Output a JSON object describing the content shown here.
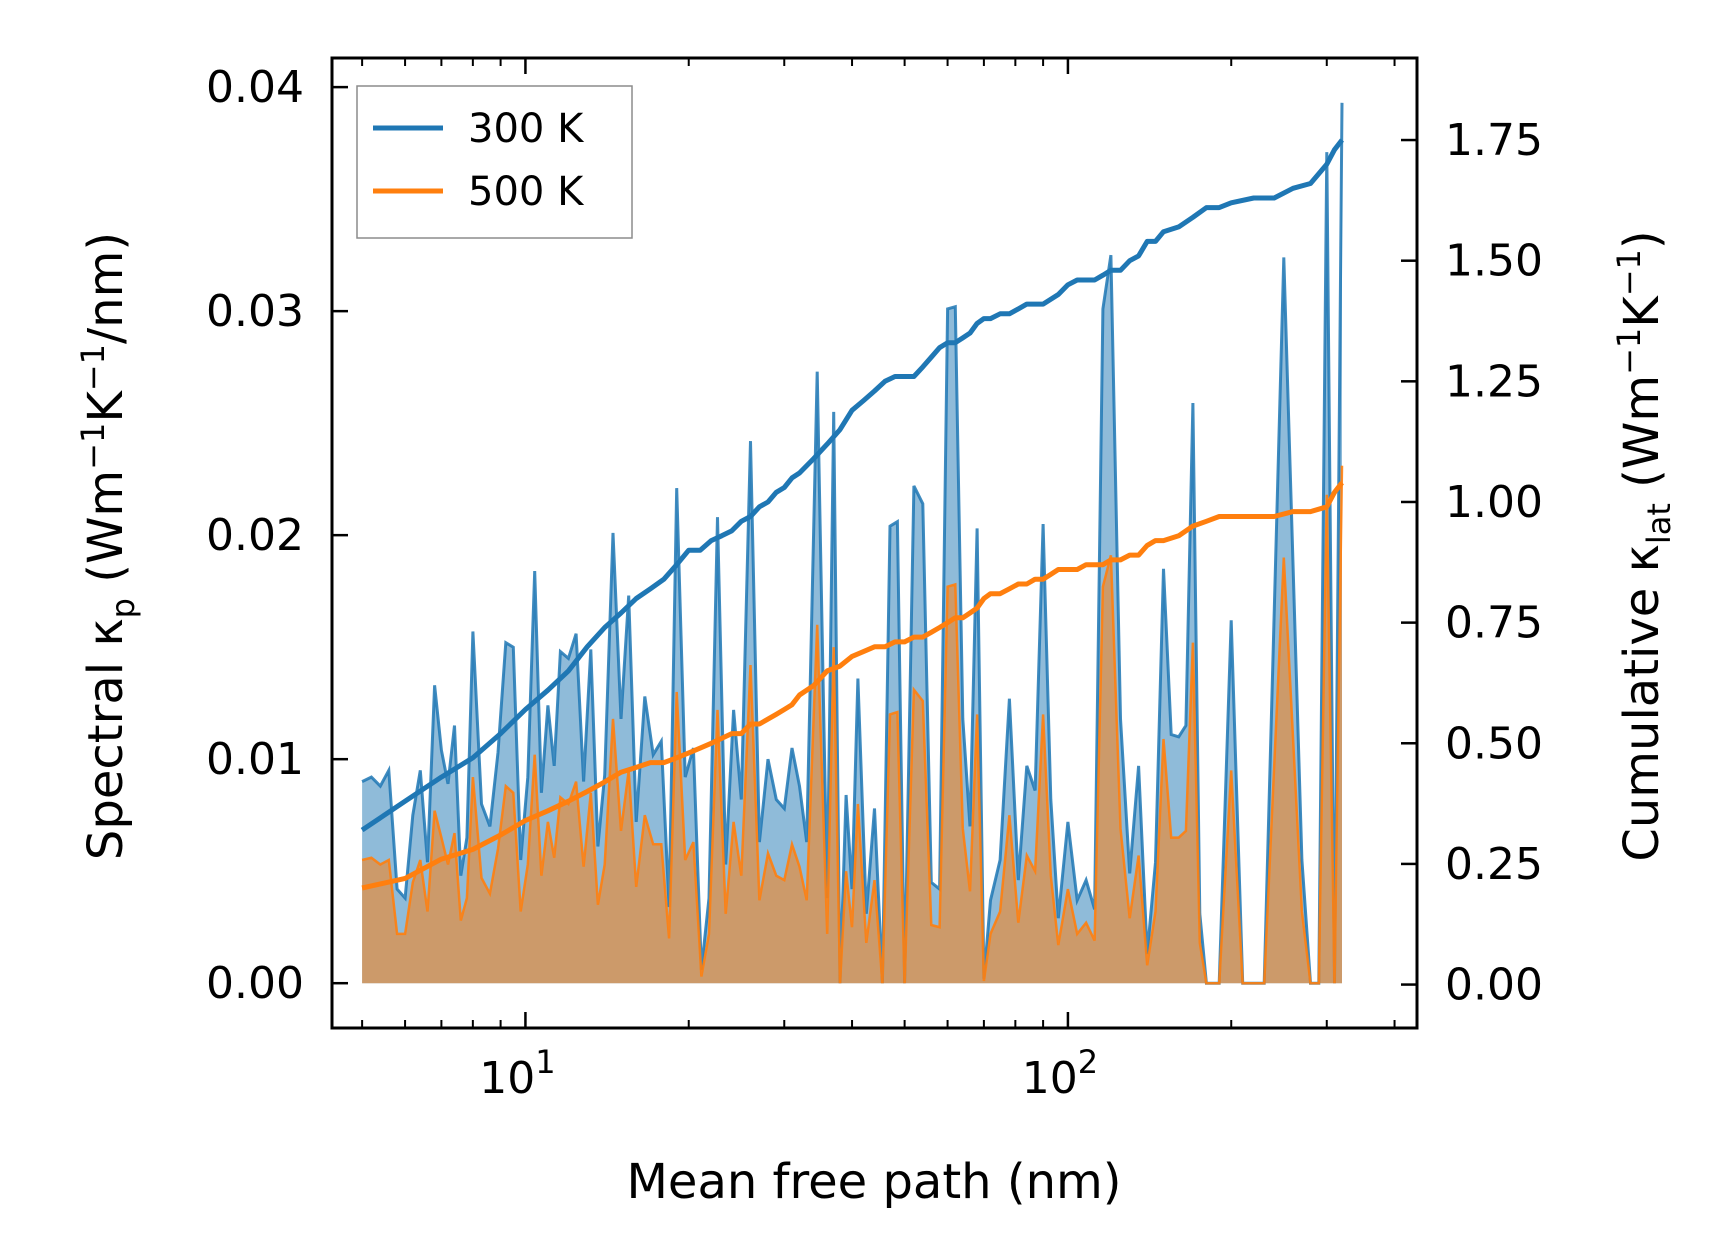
{
  "chart_data": {
    "type": "line",
    "xlabel": "Mean free path (nm)",
    "ylabel_left": {
      "prefix": "Spectral κ",
      "sub": "p",
      "mid1": " (Wm",
      "sup1": "−1",
      "mid2": "K",
      "sup2": "−1",
      "suffix": "/nm)"
    },
    "ylabel_right": {
      "prefix": "Cumulative κ",
      "sub": "lat",
      "mid1": " (Wm",
      "sup1": "−1",
      "mid2": "K",
      "sup2": "−1",
      "suffix": ")"
    },
    "x_scale": "log",
    "xlim": [
      4.4,
      440
    ],
    "ylim_left": [
      -0.002,
      0.0413
    ],
    "ylim_right": [
      -0.09,
      1.92
    ],
    "x_ticks": [
      {
        "value": 10,
        "base": "10",
        "exp": "1"
      },
      {
        "value": 100,
        "base": "10",
        "exp": "2"
      }
    ],
    "y_ticks_left": [
      {
        "value": 0.0,
        "label": "0.00"
      },
      {
        "value": 0.01,
        "label": "0.01"
      },
      {
        "value": 0.02,
        "label": "0.02"
      },
      {
        "value": 0.03,
        "label": "0.03"
      },
      {
        "value": 0.04,
        "label": "0.04"
      }
    ],
    "y_ticks_right": [
      {
        "value": 0.0,
        "label": "0.00"
      },
      {
        "value": 0.25,
        "label": "0.25"
      },
      {
        "value": 0.5,
        "label": "0.50"
      },
      {
        "value": 0.75,
        "label": "0.75"
      },
      {
        "value": 1.0,
        "label": "1.00"
      },
      {
        "value": 1.25,
        "label": "1.25"
      },
      {
        "value": 1.5,
        "label": "1.50"
      },
      {
        "value": 1.75,
        "label": "1.75"
      }
    ],
    "legend_position": "top-left",
    "series": [
      {
        "name": "300 K",
        "color": "#1f77b4",
        "spectral": {
          "x": [
            5,
            5.2,
            5.4,
            5.6,
            5.8,
            6.0,
            6.2,
            6.4,
            6.6,
            6.8,
            7.0,
            7.2,
            7.4,
            7.6,
            7.8,
            8.0,
            8.3,
            8.6,
            8.9,
            9.2,
            9.5,
            9.8,
            10.1,
            10.4,
            10.7,
            11.0,
            11.3,
            11.6,
            12.0,
            12.4,
            12.8,
            13.2,
            13.6,
            14.0,
            14.5,
            15.0,
            15.5,
            16.0,
            16.6,
            17.2,
            17.8,
            18.4,
            19.0,
            19.7,
            20.4,
            21.1,
            21.8,
            22.6,
            23.4,
            24.2,
            25.0,
            26.0,
            27.0,
            28.0,
            29.0,
            30.0,
            31.0,
            32.0,
            33.0,
            34.5,
            36.0,
            37.0,
            38.0,
            39.0,
            40.0,
            41.0,
            42.5,
            44.0,
            45.5,
            47.0,
            48.5,
            50.0,
            52.0,
            54.0,
            56.0,
            58.0,
            60.0,
            62.0,
            64.0,
            66.0,
            68.0,
            70.0,
            72.0,
            75.0,
            78.0,
            81.0,
            84.0,
            87.0,
            90.0,
            93.0,
            96.0,
            100.0,
            104.0,
            108.0,
            112.0,
            116.0,
            120.0,
            125.0,
            130.0,
            135.0,
            140.0,
            145.0,
            150.0,
            155.0,
            160.0,
            165.0,
            170.0,
            175.0,
            180.0,
            185.0,
            190.0,
            200.0,
            210.0,
            220.0,
            230.0,
            250.0,
            270.0,
            280.0,
            290.0,
            300.0,
            310.0,
            320.0
          ],
          "y": [
            0.009,
            0.0092,
            0.0088,
            0.0095,
            0.0042,
            0.0038,
            0.0075,
            0.0095,
            0.0054,
            0.0133,
            0.0104,
            0.0089,
            0.0115,
            0.0048,
            0.0065,
            0.0157,
            0.008,
            0.007,
            0.0103,
            0.0152,
            0.015,
            0.0055,
            0.0092,
            0.0184,
            0.0085,
            0.0124,
            0.0097,
            0.0148,
            0.0145,
            0.0156,
            0.009,
            0.0149,
            0.0061,
            0.0093,
            0.0201,
            0.0118,
            0.0173,
            0.0072,
            0.0128,
            0.0102,
            0.0108,
            0.0034,
            0.0221,
            0.0092,
            0.0105,
            0.0006,
            0.0038,
            0.0208,
            0.0053,
            0.0122,
            0.0082,
            0.0242,
            0.0063,
            0.01,
            0.0082,
            0.0078,
            0.0105,
            0.0088,
            0.0063,
            0.0273,
            0.0038,
            0.0255,
            0.0,
            0.0084,
            0.0042,
            0.0136,
            0.0031,
            0.0078,
            0.0,
            0.0204,
            0.0206,
            0.0,
            0.0222,
            0.0214,
            0.0045,
            0.0042,
            0.0301,
            0.0302,
            0.0118,
            0.007,
            0.0203,
            0.0002,
            0.0037,
            0.0055,
            0.0127,
            0.0046,
            0.0097,
            0.0086,
            0.0205,
            0.0082,
            0.0029,
            0.0072,
            0.0037,
            0.0046,
            0.0033,
            0.0301,
            0.0325,
            0.0118,
            0.0049,
            0.0097,
            0.0013,
            0.0054,
            0.0185,
            0.0111,
            0.011,
            0.0115,
            0.0259,
            0.0031,
            0.0,
            0.0,
            0.0,
            0.0162,
            0.0,
            0.0,
            0.0,
            0.0324,
            0.0055,
            0.0,
            0.0,
            0.0371,
            0.0,
            0.0393
          ],
          "y500": [
            0.0055,
            0.0056,
            0.0053,
            0.0055,
            0.0022,
            0.0022,
            0.0045,
            0.0055,
            0.0032,
            0.0077,
            0.0065,
            0.0053,
            0.0067,
            0.0028,
            0.0038,
            0.0092,
            0.0047,
            0.004,
            0.006,
            0.0088,
            0.0085,
            0.0032,
            0.0053,
            0.0102,
            0.0048,
            0.0072,
            0.0056,
            0.0083,
            0.008,
            0.009,
            0.0052,
            0.0085,
            0.0035,
            0.0053,
            0.0118,
            0.0068,
            0.0095,
            0.0043,
            0.0075,
            0.0062,
            0.0062,
            0.002,
            0.013,
            0.0055,
            0.0063,
            0.0003,
            0.0022,
            0.0122,
            0.0031,
            0.0072,
            0.0048,
            0.0142,
            0.0037,
            0.0058,
            0.0048,
            0.0046,
            0.0062,
            0.0052,
            0.0037,
            0.016,
            0.0022,
            0.015,
            0.0,
            0.005,
            0.0025,
            0.008,
            0.0018,
            0.0046,
            0.0,
            0.012,
            0.0121,
            0.0,
            0.0131,
            0.0126,
            0.0026,
            0.0025,
            0.0177,
            0.0178,
            0.0069,
            0.0041,
            0.012,
            0.0001,
            0.0022,
            0.0032,
            0.0075,
            0.0027,
            0.0057,
            0.005,
            0.012,
            0.0048,
            0.0017,
            0.0042,
            0.0022,
            0.0027,
            0.0019,
            0.0177,
            0.0191,
            0.0069,
            0.0029,
            0.0057,
            0.0008,
            0.0032,
            0.0109,
            0.0065,
            0.0065,
            0.0068,
            0.0152,
            0.0018,
            0.0,
            0.0,
            0.0,
            0.0095,
            0.0,
            0.0,
            0.0,
            0.019,
            0.0032,
            0.0,
            0.0,
            0.0218,
            0.0,
            0.0231
          ]
        },
        "cumulative": {
          "x": [
            5,
            6,
            7,
            8,
            9,
            10,
            11,
            12,
            13,
            14,
            15,
            16,
            17,
            18,
            19,
            20,
            21,
            22,
            23,
            24,
            25,
            26,
            27,
            28,
            29,
            30,
            31,
            32,
            34,
            36,
            38,
            40,
            42,
            44,
            46,
            48,
            50,
            52,
            54,
            56,
            58,
            60,
            62,
            64,
            66,
            68,
            70,
            72,
            75,
            78,
            81,
            84,
            87,
            90,
            93,
            96,
            100,
            104,
            108,
            112,
            116,
            120,
            125,
            130,
            135,
            140,
            145,
            150,
            160,
            170,
            180,
            190,
            200,
            220,
            240,
            260,
            280,
            300,
            310,
            320
          ],
          "y": [
            0.32,
            0.38,
            0.43,
            0.47,
            0.52,
            0.57,
            0.61,
            0.65,
            0.7,
            0.74,
            0.77,
            0.8,
            0.82,
            0.84,
            0.87,
            0.9,
            0.9,
            0.92,
            0.93,
            0.94,
            0.96,
            0.97,
            0.99,
            1.0,
            1.02,
            1.03,
            1.05,
            1.06,
            1.09,
            1.12,
            1.15,
            1.19,
            1.21,
            1.23,
            1.25,
            1.26,
            1.26,
            1.26,
            1.28,
            1.3,
            1.32,
            1.33,
            1.33,
            1.34,
            1.35,
            1.37,
            1.38,
            1.38,
            1.39,
            1.39,
            1.4,
            1.41,
            1.41,
            1.41,
            1.42,
            1.43,
            1.45,
            1.46,
            1.46,
            1.46,
            1.47,
            1.48,
            1.48,
            1.5,
            1.51,
            1.54,
            1.54,
            1.56,
            1.57,
            1.59,
            1.61,
            1.61,
            1.62,
            1.63,
            1.63,
            1.65,
            1.66,
            1.7,
            1.73,
            1.75
          ]
        }
      },
      {
        "name": "500 K",
        "color": "#ff7f0e",
        "cumulative": {
          "x": [
            5,
            6,
            7,
            8,
            9,
            10,
            11,
            12,
            13,
            14,
            15,
            16,
            17,
            18,
            19,
            20,
            21,
            22,
            23,
            24,
            25,
            26,
            27,
            28,
            29,
            30,
            31,
            32,
            34,
            36,
            38,
            40,
            42,
            44,
            46,
            48,
            50,
            52,
            54,
            56,
            58,
            60,
            62,
            64,
            66,
            68,
            70,
            72,
            75,
            78,
            81,
            84,
            87,
            90,
            93,
            96,
            100,
            104,
            108,
            112,
            116,
            120,
            125,
            130,
            135,
            140,
            145,
            150,
            160,
            170,
            180,
            190,
            200,
            220,
            240,
            260,
            280,
            300,
            310,
            320
          ],
          "y": [
            0.2,
            0.22,
            0.26,
            0.28,
            0.31,
            0.34,
            0.36,
            0.38,
            0.4,
            0.42,
            0.44,
            0.45,
            0.46,
            0.46,
            0.47,
            0.48,
            0.49,
            0.5,
            0.51,
            0.52,
            0.52,
            0.54,
            0.54,
            0.55,
            0.56,
            0.57,
            0.58,
            0.6,
            0.62,
            0.65,
            0.66,
            0.68,
            0.69,
            0.7,
            0.7,
            0.71,
            0.71,
            0.72,
            0.72,
            0.73,
            0.74,
            0.75,
            0.76,
            0.76,
            0.77,
            0.78,
            0.8,
            0.81,
            0.81,
            0.82,
            0.83,
            0.83,
            0.84,
            0.84,
            0.85,
            0.86,
            0.86,
            0.86,
            0.87,
            0.87,
            0.87,
            0.88,
            0.88,
            0.89,
            0.89,
            0.91,
            0.92,
            0.92,
            0.93,
            0.95,
            0.96,
            0.97,
            0.97,
            0.97,
            0.97,
            0.98,
            0.98,
            0.99,
            1.02,
            1.04
          ]
        }
      }
    ]
  }
}
